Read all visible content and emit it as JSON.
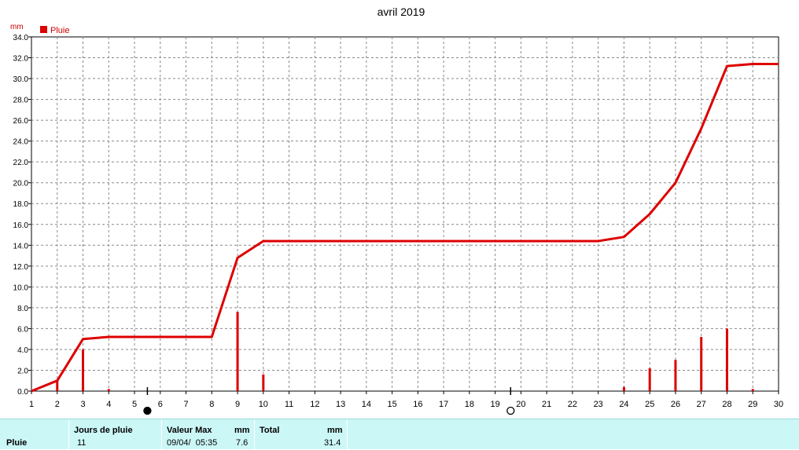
{
  "chart_data": {
    "type": "bar+line",
    "title": "avril 2019",
    "ylabel": "mm",
    "legend": [
      {
        "name": "Pluie",
        "color": "#dd0000"
      }
    ],
    "legend_position": "top-left",
    "grid": true,
    "xlim": [
      1,
      30
    ],
    "ylim": [
      0,
      34
    ],
    "x_ticks": [
      1,
      2,
      3,
      4,
      5,
      6,
      7,
      8,
      9,
      10,
      11,
      12,
      13,
      14,
      15,
      16,
      17,
      18,
      19,
      20,
      21,
      22,
      23,
      24,
      25,
      26,
      27,
      28,
      29,
      30
    ],
    "y_ticks": [
      "0.0",
      "2.0",
      "4.0",
      "6.0",
      "8.0",
      "10.0",
      "12.0",
      "14.0",
      "16.0",
      "18.0",
      "20.0",
      "22.0",
      "24.0",
      "26.0",
      "28.0",
      "30.0",
      "32.0",
      "34.0"
    ],
    "series": [
      {
        "name": "Pluie",
        "kind": "bar",
        "color": "#dd0000",
        "x": [
          2,
          3,
          4,
          9,
          10,
          24,
          25,
          26,
          27,
          28,
          29
        ],
        "values": [
          1.0,
          4.0,
          0.2,
          7.6,
          1.6,
          0.4,
          2.2,
          3.0,
          5.2,
          6.0,
          0.2
        ]
      },
      {
        "kind": "line",
        "color": "#dd0000",
        "x": [
          1,
          2,
          3,
          4,
          8,
          9,
          10,
          23,
          24,
          25,
          26,
          27,
          28,
          29,
          30
        ],
        "values": [
          0.0,
          1.0,
          5.0,
          5.2,
          5.2,
          12.8,
          14.4,
          14.4,
          14.8,
          17.0,
          20.0,
          25.2,
          31.2,
          31.4,
          31.4
        ]
      }
    ],
    "moon_phases": [
      {
        "x": 5.5,
        "icon": "new-moon-icon"
      },
      {
        "x": 19.6,
        "icon": "full-moon-icon"
      }
    ]
  },
  "stats": {
    "row_label": "Pluie",
    "rain_days_header": "Jours de pluie",
    "rain_days_value": "11",
    "max_header": "Valeur Max",
    "max_unit": "mm",
    "max_date": "09/04/  05:35",
    "max_value": "7.6",
    "total_header": "Total",
    "total_unit": "mm",
    "total_value": "31.4"
  }
}
